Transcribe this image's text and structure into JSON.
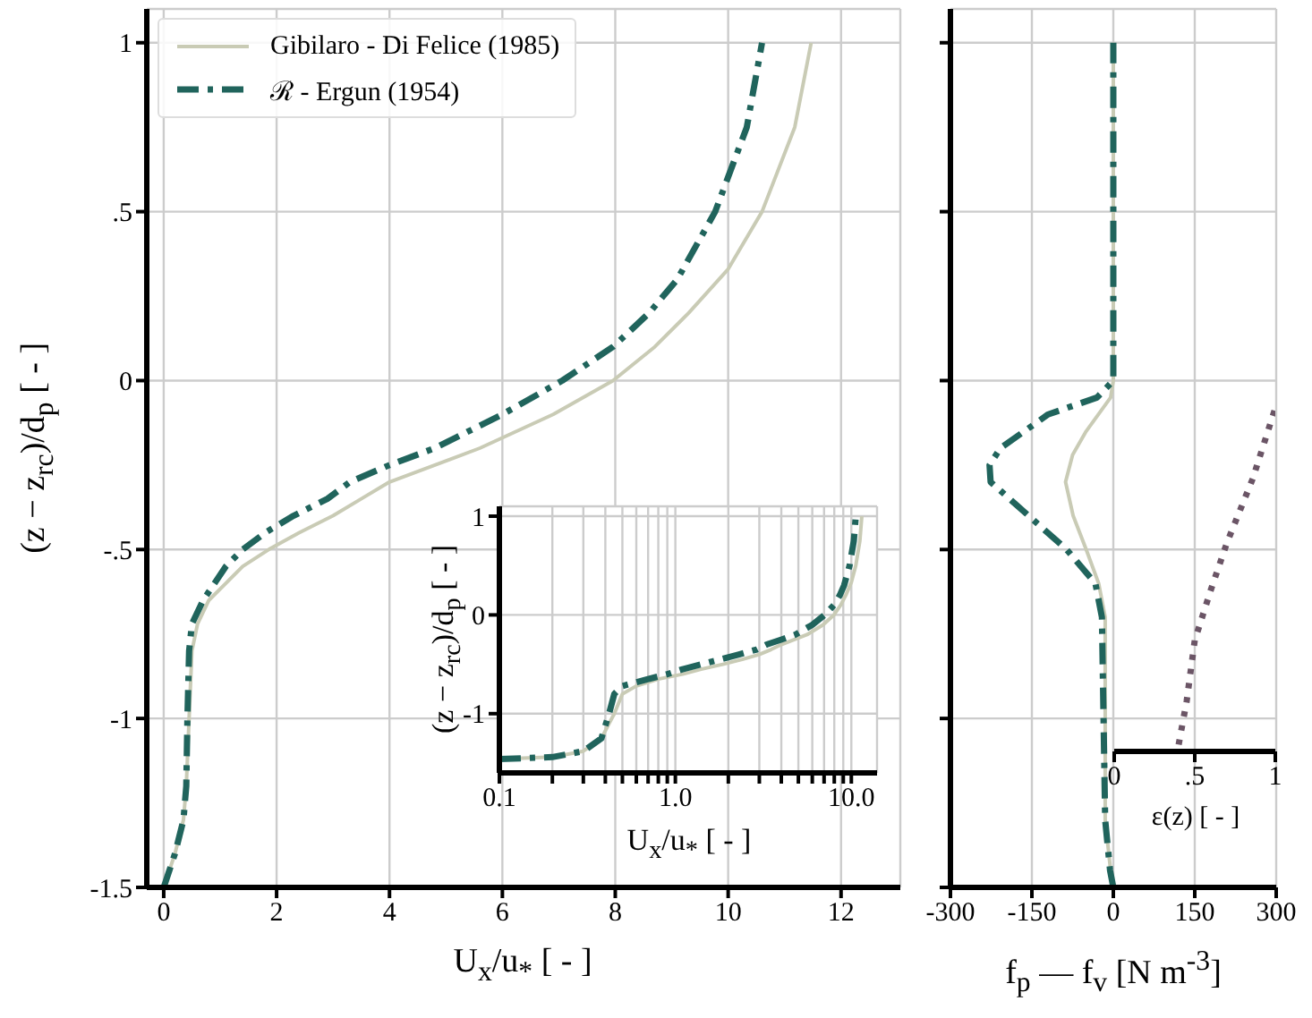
{
  "chart_data": [
    {
      "type": "line",
      "xlabel": "U$_{x}$/u$_{*}$ [ - ]",
      "ylabel": "(z − z$_{rc}$)/d$_{p}$ [ - ]",
      "xlim": [
        -0.3,
        13.05
      ],
      "xticks": [
        0,
        2,
        4,
        6,
        8,
        10,
        12
      ],
      "ylim": [
        -1.5,
        1.1
      ],
      "yticks": [
        -1.5,
        -1,
        {
          "value": -0.5,
          "label": "-.5"
        },
        0,
        {
          "value": 0.5,
          "label": ".5"
        },
        1
      ],
      "grid": true,
      "legend": "top left",
      "series": [
        {
          "name": "Gibilaro - Di Felice (1985)",
          "color": "#c9cbb5",
          "line_style": "solid",
          "x": [
            0,
            0.1,
            0.2,
            0.35,
            0.4,
            0.45,
            0.5,
            0.6,
            0.8,
            1.1,
            1.4,
            1.86,
            2.4,
            3.0,
            3.5,
            4.0,
            5.6,
            6.9,
            7.96,
            8.7,
            9.3,
            10.0,
            10.6,
            11.18,
            11.47
          ],
          "values": [
            -1.5,
            -1.45,
            -1.4,
            -1.3,
            -1.2,
            -1.0,
            -0.8,
            -0.72,
            -0.65,
            -0.6,
            -0.55,
            -0.5,
            -0.45,
            -0.4,
            -0.35,
            -0.3,
            -0.2,
            -0.1,
            0,
            0.1,
            0.2,
            0.33,
            0.5,
            0.75,
            1.0
          ]
        },
        {
          "name": "ℛ - Ergun (1954)",
          "color": "#20645c",
          "line_style": "dashdot",
          "x": [
            0,
            0.1,
            0.2,
            0.35,
            0.4,
            0.42,
            0.45,
            0.5,
            0.7,
            0.9,
            1.1,
            1.4,
            1.8,
            2.3,
            2.9,
            3.3,
            4.0,
            4.8,
            6.0,
            7.06,
            7.96,
            8.6,
            9.1,
            9.77,
            10.33,
            10.6
          ],
          "values": [
            -1.5,
            -1.45,
            -1.4,
            -1.3,
            -1.2,
            -1.0,
            -0.8,
            -0.72,
            -0.65,
            -0.6,
            -0.55,
            -0.5,
            -0.45,
            -0.4,
            -0.35,
            -0.3,
            -0.25,
            -0.2,
            -0.1,
            0,
            0.1,
            0.2,
            0.3,
            0.5,
            0.75,
            1.0
          ]
        }
      ]
    },
    {
      "type": "line",
      "xlabel": "U$_{x}$/u$_{*}$ [ - ]",
      "ylabel": "(z − z$_{rc}$)/d$_{p}$ [ - ]",
      "log": "x",
      "xlim": [
        0.1,
        14
      ],
      "xticks": [
        0.1,
        {
          "value": 0.2,
          "label": null
        },
        {
          "value": 0.3,
          "label": null
        },
        {
          "value": 0.4,
          "label": null
        },
        {
          "value": 0.5,
          "label": null
        },
        {
          "value": 0.6,
          "label": null
        },
        {
          "value": 0.7,
          "label": null
        },
        {
          "value": 0.8,
          "label": null
        },
        {
          "value": 0.9,
          "label": null
        },
        {
          "value": 1,
          "label": "1.0"
        },
        {
          "value": 2,
          "label": null
        },
        {
          "value": 3,
          "label": null
        },
        {
          "value": 4,
          "label": null
        },
        {
          "value": 5,
          "label": null
        },
        {
          "value": 6,
          "label": null
        },
        {
          "value": 7,
          "label": null
        },
        {
          "value": 8,
          "label": null
        },
        {
          "value": 9,
          "label": null
        },
        {
          "value": 10,
          "label": "10.0"
        }
      ],
      "ylim": [
        -1.6,
        1.1
      ],
      "yticks": [
        -1,
        0,
        1
      ],
      "grid": true,
      "series": [
        {
          "color": "#c9cbb5",
          "line_style": "solid",
          "x": [
            0.1,
            0.2,
            0.3,
            0.38,
            0.42,
            0.45,
            0.5,
            0.6,
            0.8,
            1.1,
            1.4,
            1.86,
            2.4,
            3.0,
            3.5,
            4.0,
            5.6,
            6.9,
            7.96,
            8.7,
            9.3,
            10.0,
            10.6,
            11.18,
            11.47
          ],
          "values": [
            -1.46,
            -1.44,
            -1.38,
            -1.25,
            -1.1,
            -1.0,
            -0.8,
            -0.72,
            -0.65,
            -0.6,
            -0.55,
            -0.5,
            -0.45,
            -0.4,
            -0.35,
            -0.3,
            -0.2,
            -0.1,
            0,
            0.1,
            0.2,
            0.33,
            0.5,
            0.75,
            1.0
          ]
        },
        {
          "color": "#20645c",
          "line_style": "dashdot",
          "x": [
            0.1,
            0.2,
            0.3,
            0.38,
            0.42,
            0.45,
            0.5,
            0.7,
            0.9,
            1.1,
            1.4,
            1.8,
            2.3,
            2.9,
            3.3,
            4.0,
            4.8,
            6.0,
            7.06,
            7.96,
            8.6,
            9.1,
            9.77,
            10.33,
            10.6
          ],
          "values": [
            -1.46,
            -1.44,
            -1.38,
            -1.25,
            -1.0,
            -0.8,
            -0.72,
            -0.65,
            -0.6,
            -0.55,
            -0.5,
            -0.45,
            -0.4,
            -0.35,
            -0.3,
            -0.25,
            -0.2,
            -0.1,
            0,
            0.1,
            0.2,
            0.3,
            0.5,
            0.75,
            1.0
          ]
        }
      ]
    },
    {
      "type": "line",
      "xlabel": "f$_{p}$ — f$_{v}$ [N m$^{-3}$]",
      "xlim": [
        -300,
        300
      ],
      "xticks": [
        -300,
        -150,
        0,
        150,
        300
      ],
      "ylim": [
        -1.5,
        1.1
      ],
      "yticks": [
        -1.5,
        -1,
        -0.5,
        0,
        0.5,
        1
      ],
      "tick_labels": "x",
      "grid": true,
      "series": [
        {
          "color": "#c9cbb5",
          "line_style": "solid",
          "x": [
            0,
            -5,
            -15,
            -15,
            -15,
            -27,
            -50,
            -74,
            -88,
            -75,
            -50,
            -5,
            0,
            0
          ],
          "values": [
            -1.5,
            -1.45,
            -1.3,
            -1.0,
            -0.7,
            -0.6,
            -0.5,
            -0.4,
            -0.3,
            -0.22,
            -0.15,
            -0.05,
            0,
            1
          ]
        },
        {
          "color": "#20645c",
          "line_style": "dashdot",
          "x": [
            0,
            -6,
            -15,
            -18,
            -21,
            -33,
            -86,
            -156,
            -226,
            -228,
            -208,
            -120,
            -30,
            0,
            0
          ],
          "values": [
            -1.5,
            -1.45,
            -1.3,
            -1.0,
            -0.7,
            -0.6,
            -0.5,
            -0.4,
            -0.3,
            -0.25,
            -0.2,
            -0.1,
            -0.05,
            0,
            1
          ]
        }
      ]
    },
    {
      "type": "line",
      "xlabel": "ε(z) [ - ]",
      "xlim": [
        0,
        1
      ],
      "xticks": [
        0,
        {
          "value": 0.5,
          "label": ".5"
        },
        1
      ],
      "ylim": [
        -1.1,
        1.1
      ],
      "yticks": [
        -1,
        0,
        1
      ],
      "tick_labels": "x",
      "series": [
        {
          "color": "#6b5566",
          "line_style": "dotted",
          "x": [
            0.4,
            0.45,
            0.5,
            0.6,
            0.7,
            0.86,
            1.0
          ],
          "values": [
            -1.08,
            -0.95,
            -0.77,
            -0.62,
            -0.48,
            -0.29,
            -0.08
          ]
        }
      ]
    }
  ]
}
